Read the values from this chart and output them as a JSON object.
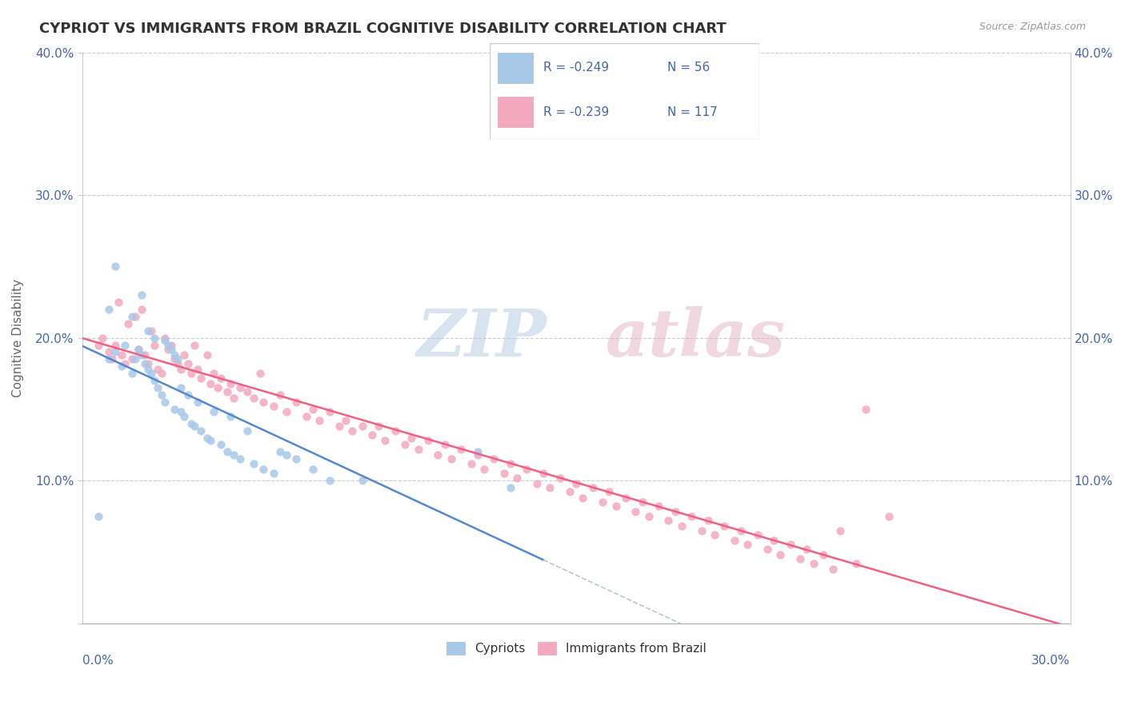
{
  "title": "CYPRIOT VS IMMIGRANTS FROM BRAZIL COGNITIVE DISABILITY CORRELATION CHART",
  "source": "Source: ZipAtlas.com",
  "ylabel": "Cognitive Disability",
  "xlim": [
    0.0,
    0.3
  ],
  "ylim": [
    0.0,
    0.4
  ],
  "legend": {
    "blue_r": "R = -0.249",
    "blue_n": "N = 56",
    "pink_r": "R = -0.239",
    "pink_n": "N = 117"
  },
  "cypriot_color": "#a8c8e8",
  "brazil_color": "#f4a8c0",
  "trendline_blue_color": "#5588cc",
  "trendline_pink_color": "#f06080",
  "trendline_dashed_color": "#b8c8d8",
  "label_color": "#4466aa",
  "cypriot_x": [
    0.005,
    0.008,
    0.008,
    0.01,
    0.01,
    0.012,
    0.013,
    0.015,
    0.015,
    0.016,
    0.017,
    0.018,
    0.018,
    0.019,
    0.02,
    0.02,
    0.021,
    0.022,
    0.022,
    0.023,
    0.024,
    0.025,
    0.025,
    0.026,
    0.027,
    0.028,
    0.028,
    0.029,
    0.03,
    0.03,
    0.031,
    0.032,
    0.033,
    0.034,
    0.035,
    0.036,
    0.038,
    0.039,
    0.04,
    0.042,
    0.044,
    0.045,
    0.046,
    0.048,
    0.05,
    0.052,
    0.055,
    0.058,
    0.06,
    0.062,
    0.065,
    0.07,
    0.075,
    0.085,
    0.12,
    0.13
  ],
  "cypriot_y": [
    0.075,
    0.185,
    0.22,
    0.19,
    0.25,
    0.18,
    0.195,
    0.175,
    0.215,
    0.185,
    0.192,
    0.188,
    0.23,
    0.182,
    0.178,
    0.205,
    0.175,
    0.17,
    0.2,
    0.165,
    0.16,
    0.155,
    0.198,
    0.195,
    0.192,
    0.15,
    0.188,
    0.185,
    0.148,
    0.165,
    0.145,
    0.16,
    0.14,
    0.138,
    0.155,
    0.135,
    0.13,
    0.128,
    0.148,
    0.125,
    0.12,
    0.145,
    0.118,
    0.115,
    0.135,
    0.112,
    0.108,
    0.105,
    0.12,
    0.118,
    0.115,
    0.108,
    0.1,
    0.1,
    0.12,
    0.095
  ],
  "brazil_x": [
    0.005,
    0.006,
    0.008,
    0.009,
    0.01,
    0.011,
    0.012,
    0.013,
    0.014,
    0.015,
    0.016,
    0.017,
    0.018,
    0.019,
    0.02,
    0.021,
    0.022,
    0.023,
    0.024,
    0.025,
    0.026,
    0.027,
    0.028,
    0.029,
    0.03,
    0.031,
    0.032,
    0.033,
    0.034,
    0.035,
    0.036,
    0.038,
    0.039,
    0.04,
    0.041,
    0.042,
    0.044,
    0.045,
    0.046,
    0.048,
    0.05,
    0.052,
    0.054,
    0.055,
    0.058,
    0.06,
    0.062,
    0.065,
    0.068,
    0.07,
    0.072,
    0.075,
    0.078,
    0.08,
    0.082,
    0.085,
    0.088,
    0.09,
    0.092,
    0.095,
    0.098,
    0.1,
    0.102,
    0.105,
    0.108,
    0.11,
    0.112,
    0.115,
    0.118,
    0.12,
    0.122,
    0.125,
    0.128,
    0.13,
    0.132,
    0.135,
    0.138,
    0.14,
    0.142,
    0.145,
    0.148,
    0.15,
    0.152,
    0.155,
    0.158,
    0.16,
    0.162,
    0.165,
    0.168,
    0.17,
    0.172,
    0.175,
    0.178,
    0.18,
    0.182,
    0.185,
    0.188,
    0.19,
    0.192,
    0.195,
    0.198,
    0.2,
    0.202,
    0.205,
    0.208,
    0.21,
    0.212,
    0.215,
    0.218,
    0.22,
    0.222,
    0.225,
    0.228,
    0.23,
    0.235,
    0.238,
    0.245
  ],
  "brazil_y": [
    0.195,
    0.2,
    0.19,
    0.185,
    0.195,
    0.225,
    0.188,
    0.182,
    0.21,
    0.185,
    0.215,
    0.192,
    0.22,
    0.188,
    0.182,
    0.205,
    0.195,
    0.178,
    0.175,
    0.2,
    0.192,
    0.195,
    0.185,
    0.182,
    0.178,
    0.188,
    0.182,
    0.175,
    0.195,
    0.178,
    0.172,
    0.188,
    0.168,
    0.175,
    0.165,
    0.172,
    0.162,
    0.168,
    0.158,
    0.165,
    0.162,
    0.158,
    0.175,
    0.155,
    0.152,
    0.16,
    0.148,
    0.155,
    0.145,
    0.15,
    0.142,
    0.148,
    0.138,
    0.142,
    0.135,
    0.138,
    0.132,
    0.138,
    0.128,
    0.135,
    0.125,
    0.13,
    0.122,
    0.128,
    0.118,
    0.125,
    0.115,
    0.122,
    0.112,
    0.118,
    0.108,
    0.115,
    0.105,
    0.112,
    0.102,
    0.108,
    0.098,
    0.105,
    0.095,
    0.102,
    0.092,
    0.098,
    0.088,
    0.095,
    0.085,
    0.092,
    0.082,
    0.088,
    0.078,
    0.085,
    0.075,
    0.082,
    0.072,
    0.078,
    0.068,
    0.075,
    0.065,
    0.072,
    0.062,
    0.068,
    0.058,
    0.065,
    0.055,
    0.062,
    0.052,
    0.058,
    0.048,
    0.055,
    0.045,
    0.052,
    0.042,
    0.048,
    0.038,
    0.065,
    0.042,
    0.15,
    0.075
  ]
}
